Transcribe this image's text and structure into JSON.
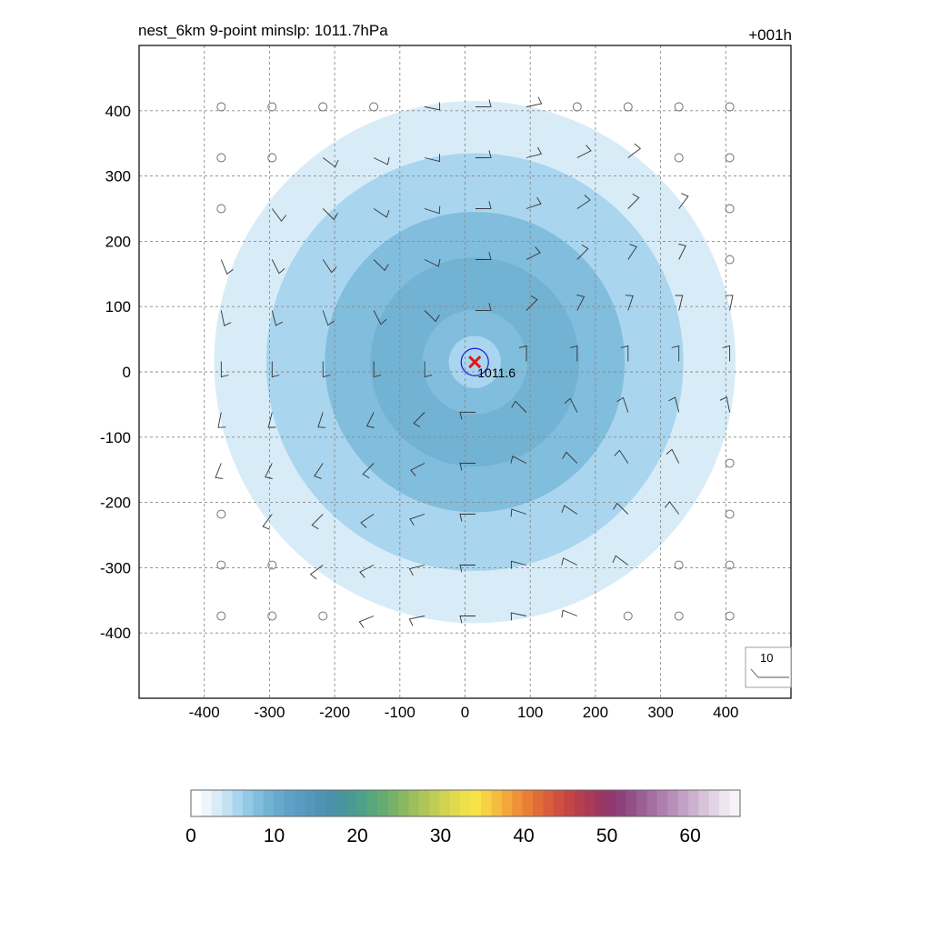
{
  "chart_data": {
    "type": "heatmap",
    "title_left": "nest_6km  9-point minslp: 1011.7hPa",
    "title_right": "+001h",
    "xlabel": "",
    "ylabel": "",
    "xlim": [
      -500,
      500
    ],
    "ylim": [
      -500,
      500
    ],
    "xticks": [
      -400,
      -300,
      -200,
      -100,
      0,
      100,
      200,
      300,
      400
    ],
    "yticks": [
      -400,
      -300,
      -200,
      -100,
      0,
      100,
      200,
      300,
      400
    ],
    "xtick_labels": [
      "-400",
      "-300",
      "-200",
      "-100",
      "0",
      "100",
      "200",
      "300",
      "400"
    ],
    "ytick_labels": [
      "-400",
      "-300",
      "-200",
      "-100",
      "0",
      "100",
      "200",
      "300",
      "400"
    ],
    "grid": "dashed",
    "center": {
      "x": 15,
      "y": 15,
      "label": "1011.6"
    },
    "wind_speed_field": {
      "description_levels": [
        {
          "radius_km": 400,
          "value": 2
        },
        {
          "radius_km": 385,
          "value": 3
        },
        {
          "radius_km": 320,
          "value": 5
        },
        {
          "radius_km": 230,
          "value": 8
        },
        {
          "radius_km": 160,
          "value": 9
        },
        {
          "radius_km": 80,
          "value": 7
        },
        {
          "radius_km": 40,
          "value": 5
        }
      ]
    },
    "wind_barbs": {
      "grid_spacing_km": 78,
      "calm_radius_km": 420,
      "direction": "cyclonic"
    },
    "barb_legend": {
      "label": "10",
      "position": "bottom-right"
    },
    "colorbar": {
      "min": 0,
      "max": 66,
      "ticks": [
        0,
        10,
        20,
        30,
        40,
        50,
        60
      ],
      "tick_labels": [
        "0",
        "10",
        "20",
        "30",
        "40",
        "50",
        "60"
      ],
      "colors": [
        "#ffffff",
        "#eef5fb",
        "#d8ecf8",
        "#c2e2f4",
        "#a9d5ee",
        "#93c9e6",
        "#81bddc",
        "#72b2d3",
        "#66a9cc",
        "#5ea1c6",
        "#5a9bc2",
        "#5497bb",
        "#4f93b3",
        "#4b91a9",
        "#4a949f",
        "#4a9a94",
        "#4ea088",
        "#58a67c",
        "#66ab72",
        "#76b16a",
        "#88b862",
        "#9bbf5b",
        "#aec657",
        "#c0cd54",
        "#d1d452",
        "#e1da4f",
        "#eee04b",
        "#f7e248",
        "#f6d244",
        "#f5bc3f",
        "#f3a63b",
        "#ef9138",
        "#ea7e37",
        "#e26c38",
        "#d95d3b",
        "#cf5040",
        "#c34646",
        "#b63f4e",
        "#a93a58",
        "#9c3763",
        "#91386f",
        "#8d417b",
        "#935087",
        "#9b5f94",
        "#a56fa1",
        "#ae7fae",
        "#b88fba",
        "#c3a0c5",
        "#cdb1d0",
        "#d8c3da",
        "#e2d4e4",
        "#ede6ee",
        "#f6f2f7"
      ]
    }
  }
}
